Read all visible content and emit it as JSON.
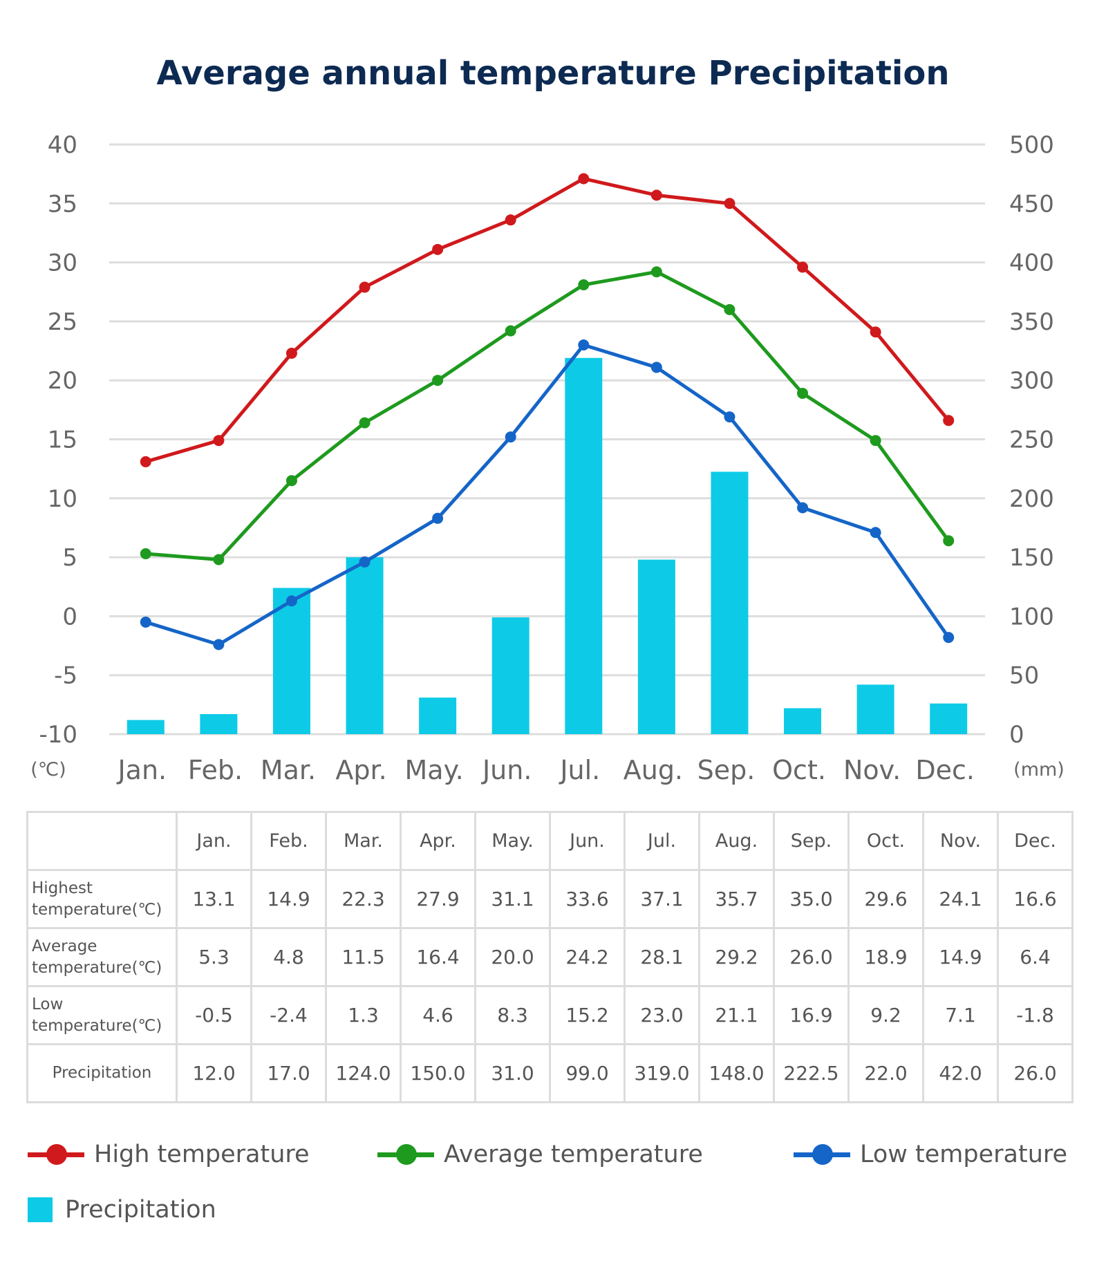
{
  "chart_data": {
    "type": "bar+line",
    "title": "Average annual temperature Precipitation",
    "categories": [
      "Jan.",
      "Feb.",
      "Mar.",
      "Apr.",
      "May.",
      "Jun.",
      "Jul.",
      "Aug.",
      "Sep.",
      "Oct.",
      "Nov.",
      "Dec."
    ],
    "y_left": {
      "unit": "(℃)",
      "ticks": [
        "40",
        "35",
        "30",
        "25",
        "20",
        "15",
        "10",
        "5",
        "0",
        "-5",
        "-10"
      ],
      "range": [
        -10,
        40
      ]
    },
    "y_right": {
      "unit": "(mm)",
      "ticks": [
        "500",
        "450",
        "400",
        "350",
        "300",
        "250",
        "200",
        "150",
        "100",
        "50",
        "0"
      ],
      "range": [
        0,
        500
      ]
    },
    "grid": true,
    "series": [
      {
        "name": "High temperature",
        "type": "line",
        "axis": "left",
        "color": "#d0191c",
        "values": [
          13.1,
          14.9,
          22.3,
          27.9,
          31.1,
          33.6,
          37.1,
          35.7,
          35.0,
          29.6,
          24.1,
          16.6
        ]
      },
      {
        "name": "Average temperature",
        "type": "line",
        "axis": "left",
        "color": "#1e9a1e",
        "values": [
          5.3,
          4.8,
          11.5,
          16.4,
          20.0,
          24.2,
          28.1,
          29.2,
          26.0,
          18.9,
          14.9,
          6.4
        ]
      },
      {
        "name": "Low temperature",
        "type": "line",
        "axis": "left",
        "color": "#1565c8",
        "values": [
          -0.5,
          -2.4,
          1.3,
          4.6,
          8.3,
          15.2,
          23.0,
          21.1,
          16.9,
          9.2,
          7.1,
          -1.8
        ]
      },
      {
        "name": "Precipitation",
        "type": "bar",
        "axis": "right",
        "color": "#0dcbe6",
        "values": [
          12.0,
          17.0,
          124.0,
          150.0,
          31.0,
          99.0,
          319.0,
          148.0,
          222.5,
          22.0,
          42.0,
          26.0
        ]
      }
    ],
    "legend_position": "bottom"
  },
  "table": {
    "headers": [
      "Jan.",
      "Feb.",
      "Mar.",
      "Apr.",
      "May.",
      "Jun.",
      "Jul.",
      "Aug.",
      "Sep.",
      "Oct.",
      "Nov.",
      "Dec."
    ],
    "rows": [
      {
        "label_1": "Highest",
        "label_2": "temperature(℃)",
        "cells": [
          "13.1",
          "14.9",
          "22.3",
          "27.9",
          "31.1",
          "33.6",
          "37.1",
          "35.7",
          "35.0",
          "29.6",
          "24.1",
          "16.6"
        ]
      },
      {
        "label_1": "Average",
        "label_2": "temperature(℃)",
        "cells": [
          "5.3",
          "4.8",
          "11.5",
          "16.4",
          "20.0",
          "24.2",
          "28.1",
          "29.2",
          "26.0",
          "18.9",
          "14.9",
          "6.4"
        ]
      },
      {
        "label_1": "Low",
        "label_2": "temperature(℃)",
        "cells": [
          "-0.5",
          "-2.4",
          "1.3",
          "4.6",
          "8.3",
          "15.2",
          "23.0",
          "21.1",
          "16.9",
          "9.2",
          "7.1",
          "-1.8"
        ]
      },
      {
        "label_1": "Precipitation",
        "label_2": "",
        "cells": [
          "12.0",
          "17.0",
          "124.0",
          "150.0",
          "31.0",
          "99.0",
          "319.0",
          "148.0",
          "222.5",
          "22.0",
          "42.0",
          "26.0"
        ]
      }
    ]
  },
  "legend": {
    "high": "High temperature",
    "average": "Average temperature",
    "low": "Low temperature",
    "precipitation": "Precipitation"
  },
  "colors": {
    "title": "#0d2a52",
    "grid": "#dddddd",
    "text": "#666666"
  }
}
